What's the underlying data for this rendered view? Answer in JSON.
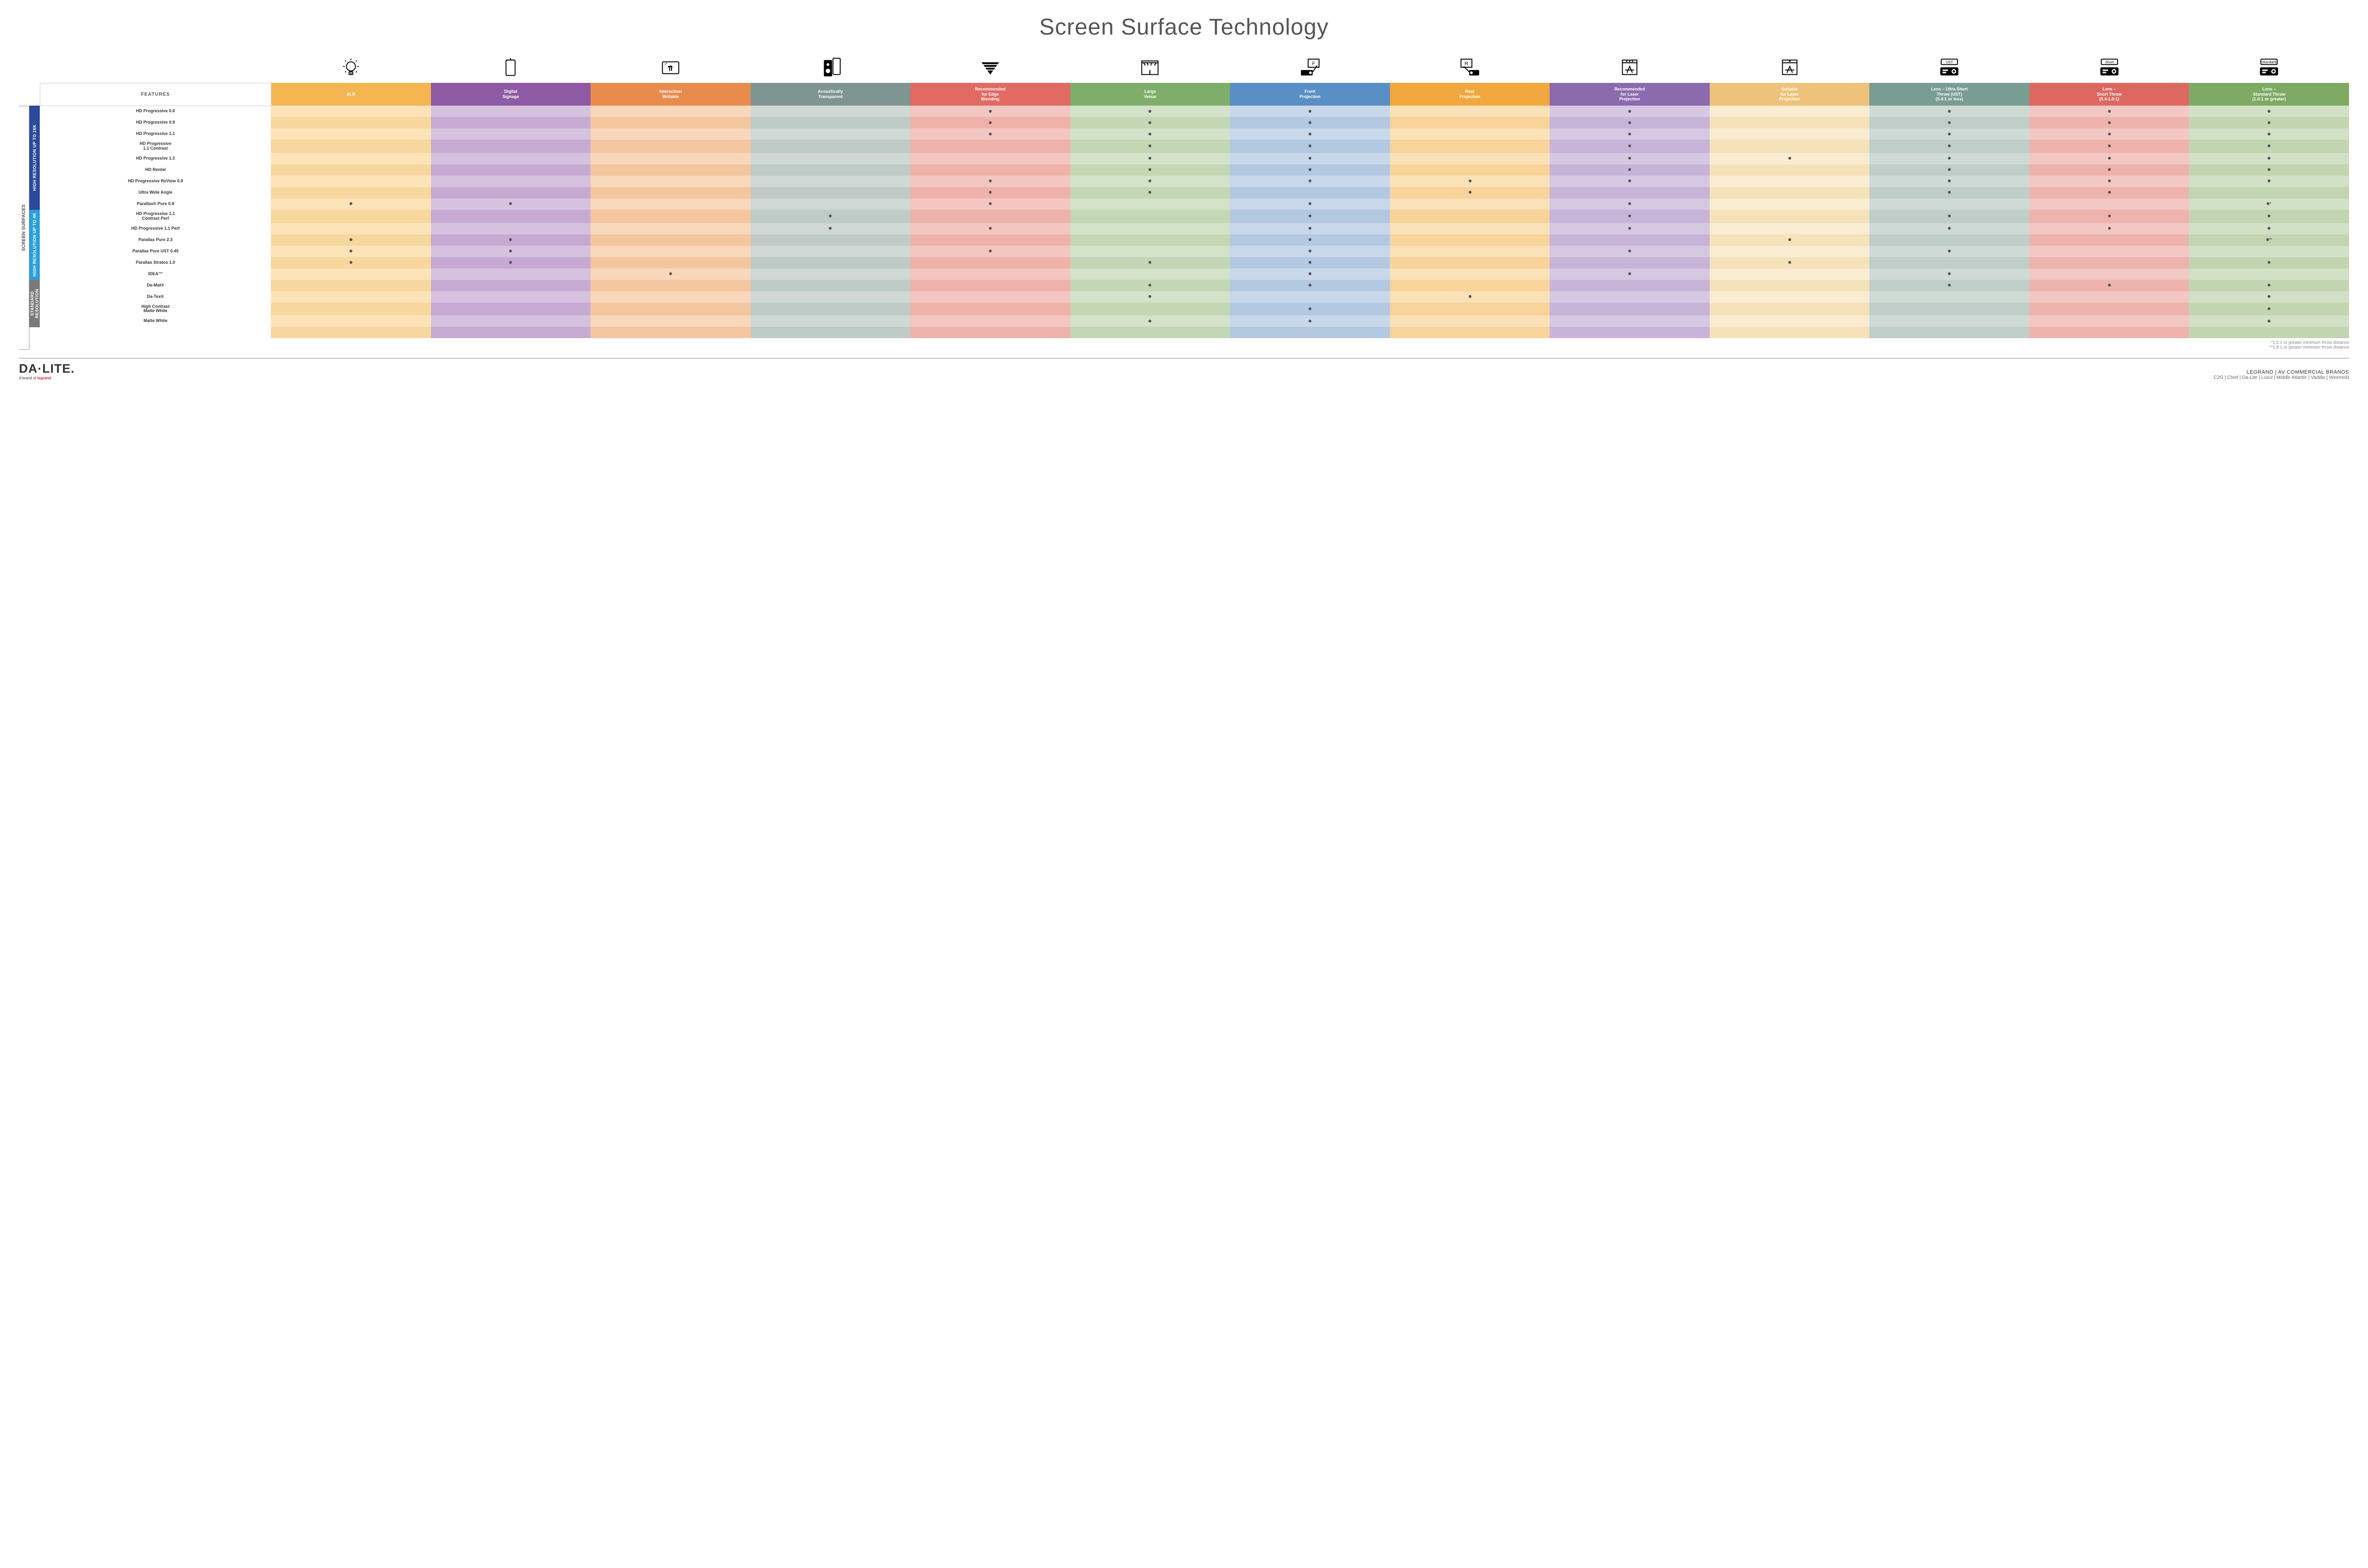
{
  "title": "Screen Surface Technology",
  "features_header": "FEATURES",
  "outer_vlabel": "SCREEN SURFACES",
  "columns": [
    {
      "key": "alr",
      "label": "ALR",
      "color": "#f3b651",
      "icon": "bulb"
    },
    {
      "key": "signage",
      "label": "Digital\nSignage",
      "color": "#8e5aa3",
      "icon": "tablet"
    },
    {
      "key": "interactive",
      "label": "Interactive/\nWritable",
      "color": "#e88b4d",
      "icon": "touch"
    },
    {
      "key": "acoustic",
      "label": "Acoustically\nTransparent",
      "color": "#7e9591",
      "icon": "speaker"
    },
    {
      "key": "edge",
      "label": "Recommended\nfor Edge\nBlending",
      "color": "#e16a63",
      "icon": "blend"
    },
    {
      "key": "large",
      "label": "Large\nVenue",
      "color": "#7fae6a",
      "icon": "venue"
    },
    {
      "key": "front",
      "label": "Front\nProjection",
      "color": "#5a8fc6",
      "icon": "front"
    },
    {
      "key": "rear",
      "label": "Rear\nProjection",
      "color": "#f0a83e",
      "icon": "rear"
    },
    {
      "key": "reclaser",
      "label": "Recommended\nfor Laser\nProjection",
      "color": "#8b6aae",
      "icon": "laser3"
    },
    {
      "key": "suitlaser",
      "label": "Suitable\nfor Laser\nProjection",
      "color": "#eec27a",
      "icon": "laser1"
    },
    {
      "key": "ust",
      "label": "Lens – Ultra Short\nThrow (UST)\n(0.4:1 or less)",
      "color": "#7a9d93",
      "icon": "proj",
      "badge": "UST"
    },
    {
      "key": "short",
      "label": "Lens –\nShort Throw\n(0.4-1.0:1)",
      "color": "#dd6862",
      "icon": "proj",
      "badge": "Short"
    },
    {
      "key": "std",
      "label": "Lens –\nStandard Throw\n(1.0:1 or greater)",
      "color": "#7eaa63",
      "icon": "proj",
      "badge": "Standard"
    }
  ],
  "tints": {
    "alr": [
      "#fde3b8",
      "#f8d79f"
    ],
    "signage": [
      "#d6c2df",
      "#c6aad4"
    ],
    "interactive": [
      "#f8d7bb",
      "#f3c6a0"
    ],
    "acoustic": [
      "#cfd8d5",
      "#bfcbc7"
    ],
    "edge": [
      "#f4c6c1",
      "#efb2ab"
    ],
    "large": [
      "#d3e2c8",
      "#c3d7b4"
    ],
    "front": [
      "#c8d8ea",
      "#b3c8e1"
    ],
    "rear": [
      "#fbe1b7",
      "#f8d39a"
    ],
    "reclaser": [
      "#d6c8e3",
      "#c7b4d8"
    ],
    "suitlaser": [
      "#f9ecd1",
      "#f5e2b9"
    ],
    "ust": [
      "#cfdad5",
      "#bfcec8"
    ],
    "short": [
      "#f3c7c3",
      "#eeb3ad"
    ],
    "std": [
      "#d2e0c5",
      "#c2d5b1"
    ]
  },
  "categories": [
    {
      "label": "HIGH RESOLUTION UP TO 16K",
      "color": "#2b4a9b",
      "rows": 9
    },
    {
      "label": "HIGH RESOLUTION UP TO 4K",
      "color": "#2aa0d8",
      "rows": 6
    },
    {
      "label": "STANDARD\nRESOLUTION",
      "color": "#7a7a7a",
      "rows": 4
    }
  ],
  "rows": [
    {
      "label": "HD Progressive 0.6",
      "d": {
        "edge": "•",
        "large": "•",
        "front": "•",
        "reclaser": "•",
        "ust": "•",
        "short": "•",
        "std": "•"
      }
    },
    {
      "label": "HD Progressive 0.9",
      "d": {
        "edge": "•",
        "large": "•",
        "front": "•",
        "reclaser": "•",
        "ust": "•",
        "short": "•",
        "std": "•"
      }
    },
    {
      "label": "HD Progressive 1.1",
      "d": {
        "edge": "•",
        "large": "•",
        "front": "•",
        "reclaser": "•",
        "ust": "•",
        "short": "•",
        "std": "•"
      }
    },
    {
      "label": "HD Progressive\n1.1 Contrast",
      "d": {
        "large": "•",
        "front": "•",
        "reclaser": "•",
        "ust": "•",
        "short": "•",
        "std": "•"
      }
    },
    {
      "label": "HD Progressive 1.3",
      "d": {
        "large": "•",
        "front": "•",
        "reclaser": "•",
        "suitlaser": "•",
        "ust": "•",
        "short": "•",
        "std": "•"
      }
    },
    {
      "label": "HD Rental",
      "d": {
        "large": "•",
        "front": "•",
        "reclaser": "•",
        "ust": "•",
        "short": "•",
        "std": "•"
      }
    },
    {
      "label": "HD Progressive ReView 0.9",
      "d": {
        "edge": "•",
        "large": "•",
        "front": "•",
        "rear": "•",
        "reclaser": "•",
        "ust": "•",
        "short": "•",
        "std": "•"
      }
    },
    {
      "label": "Ultra Wide Angle",
      "d": {
        "edge": "•",
        "large": "•",
        "rear": "•",
        "ust": "•",
        "short": "•"
      }
    },
    {
      "label": "Parallax® Pure 0.8",
      "d": {
        "alr": "•",
        "signage": "•",
        "edge": "•",
        "front": "•",
        "reclaser": "•",
        "std": "•*"
      }
    },
    {
      "label": "HD Progressive 1.1\nContrast Perf",
      "d": {
        "acoustic": "•",
        "front": "•",
        "reclaser": "•",
        "ust": "•",
        "short": "•",
        "std": "•"
      }
    },
    {
      "label": "HD Progressive 1.1 Perf",
      "d": {
        "acoustic": "•",
        "edge": "•",
        "front": "•",
        "reclaser": "•",
        "ust": "•",
        "short": "•",
        "std": "•"
      }
    },
    {
      "label": "Parallax Pure 2.3",
      "d": {
        "alr": "•",
        "signage": "•",
        "front": "•",
        "suitlaser": "•",
        "std": "•**"
      }
    },
    {
      "label": "Parallax Pure UST 0.45",
      "d": {
        "alr": "•",
        "signage": "•",
        "edge": "•",
        "front": "•",
        "reclaser": "•",
        "ust": "•"
      }
    },
    {
      "label": "Parallax Stratos 1.0",
      "d": {
        "alr": "•",
        "signage": "•",
        "large": "•",
        "front": "•",
        "suitlaser": "•",
        "std": "•"
      }
    },
    {
      "label": "IDEA™",
      "d": {
        "interactive": "•",
        "front": "•",
        "reclaser": "•",
        "ust": "•"
      }
    },
    {
      "label": "Da-Mat®",
      "d": {
        "large": "•",
        "front": "•",
        "ust": "•",
        "short": "•",
        "std": "•"
      }
    },
    {
      "label": "Da-Tex®",
      "d": {
        "large": "•",
        "rear": "•",
        "std": "•"
      }
    },
    {
      "label": "High Contrast\nMatte White",
      "d": {
        "front": "•",
        "std": "•"
      }
    },
    {
      "label": "Matte White",
      "d": {
        "large": "•",
        "front": "•",
        "std": "•"
      }
    }
  ],
  "footnote1": "*1.5:1 or greater minimum throw distance",
  "footnote2": "**1.8:1 or greater minimum throw distance",
  "logo_main": "DA·LITE.",
  "logo_sub_prefix": "A brand of ",
  "logo_sub_brand": "legrand",
  "brands_heading": "LEGRAND | AV COMMERCIAL BRANDS",
  "brands_list": "C2G  |  Chief  |  Da-Lite  |  Luxul  |  Middle Atlantic  |  Vaddio  |  Wiremold"
}
